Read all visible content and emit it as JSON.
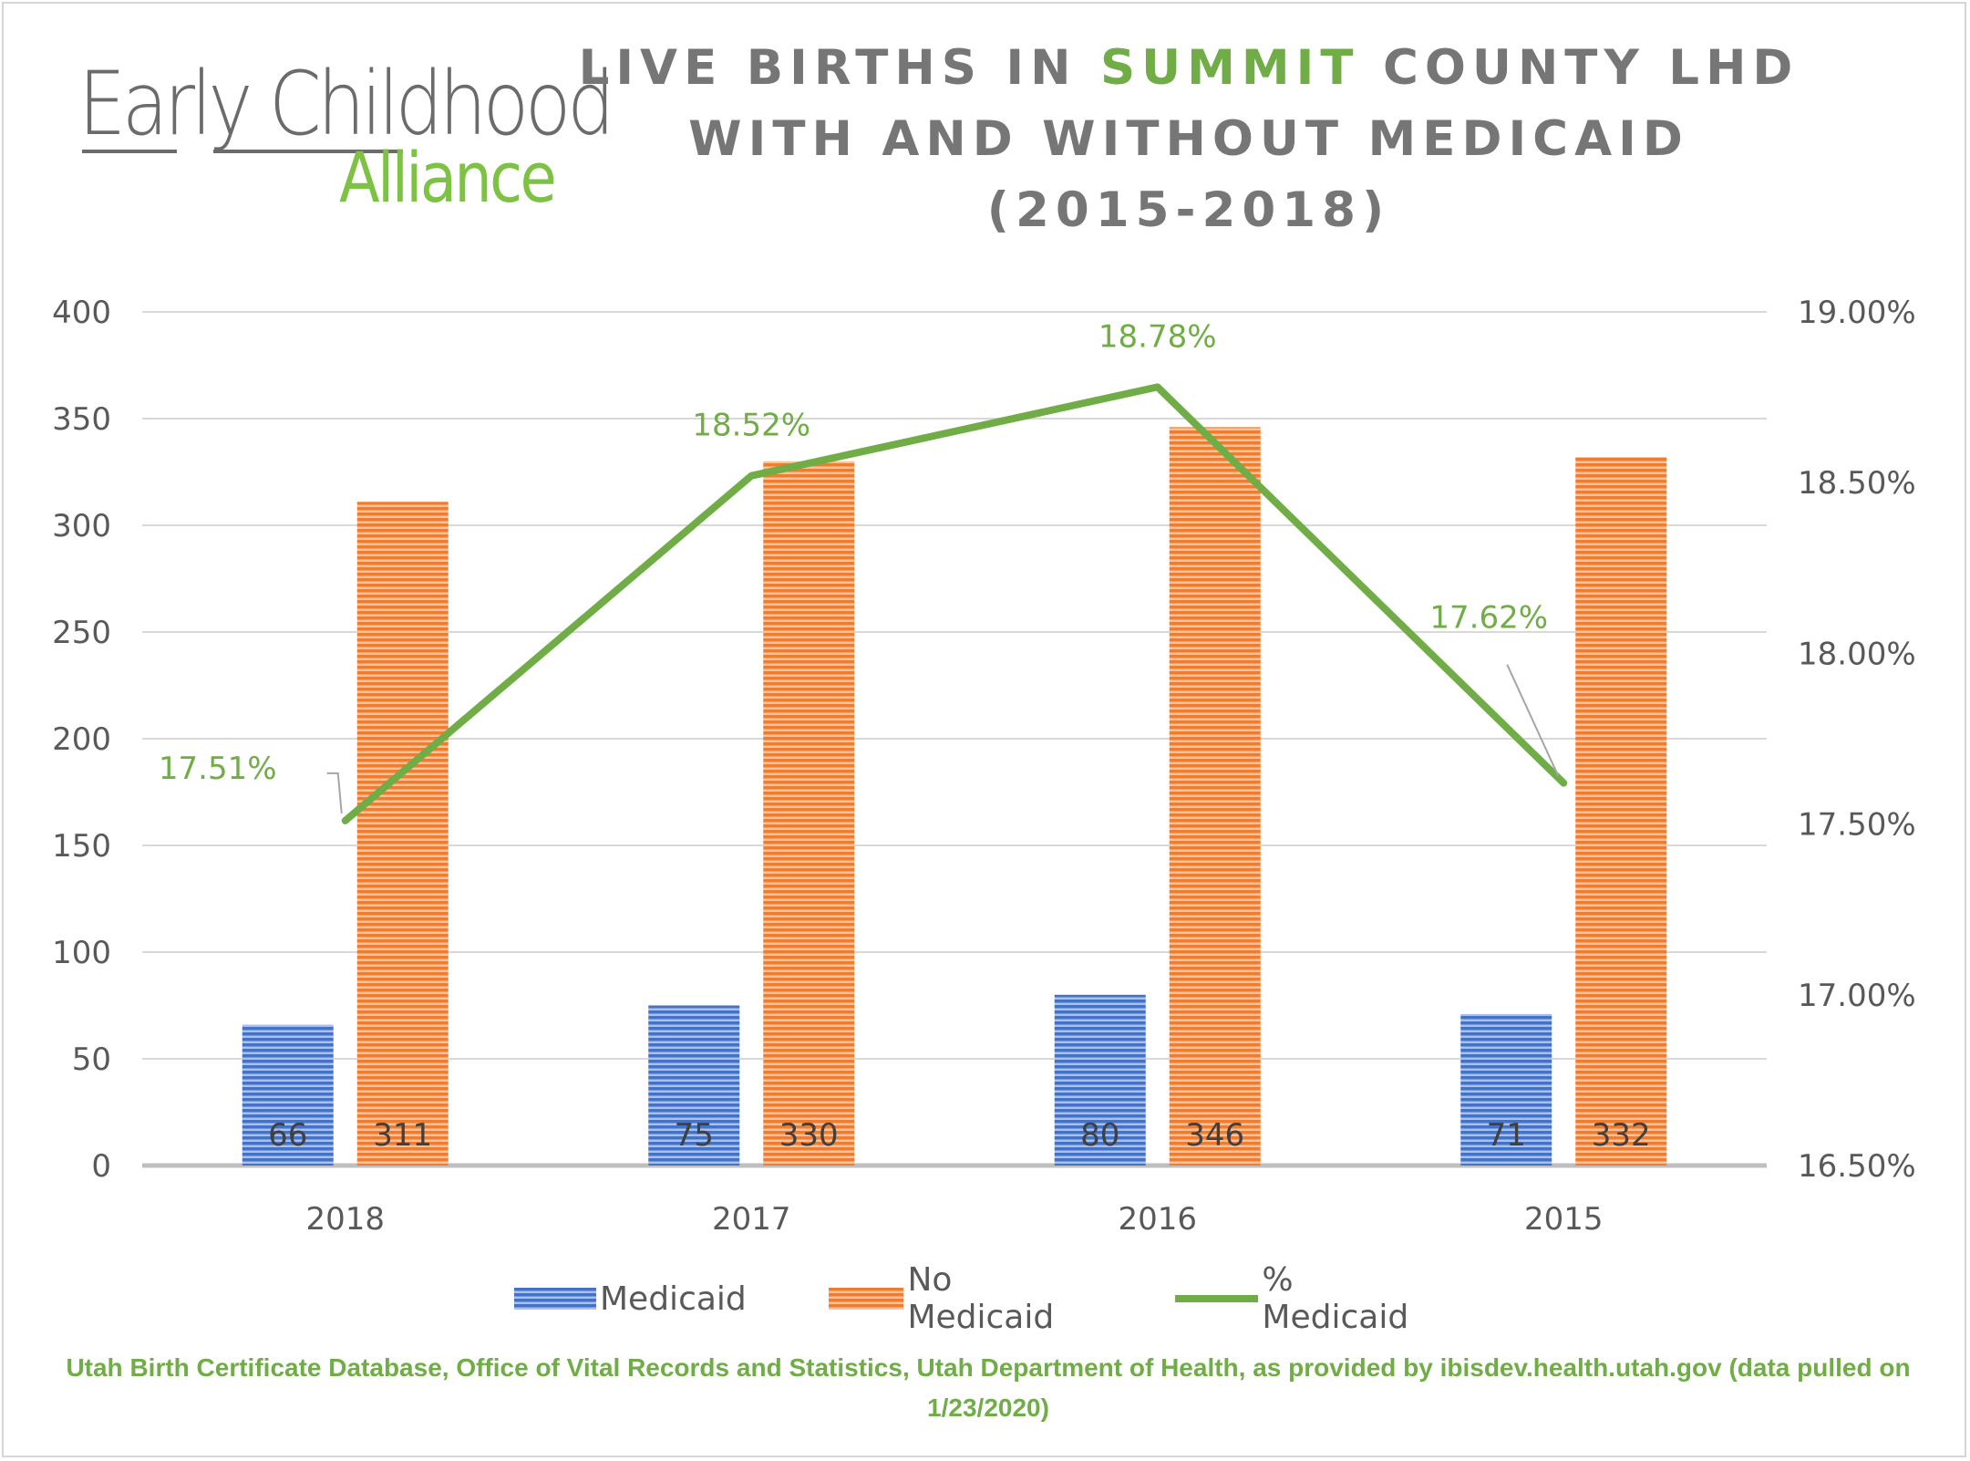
{
  "logo": {
    "line1": "Early Childhood",
    "line2": "Alliance"
  },
  "title": {
    "part1": "LIVE BIRTHS IN ",
    "highlight": "SUMMIT",
    "part2": " COUNTY LHD",
    "line2": "WITH AND WITHOUT MEDICAID",
    "line3": "(2015-2018)"
  },
  "colors": {
    "medicaid": "#4472c4",
    "no_medicaid": "#ed7d31",
    "pct_line": "#70ad47",
    "title_text": "#767676",
    "axis_text": "#595959"
  },
  "chart_data": {
    "type": "bar",
    "categories": [
      "2018",
      "2017",
      "2016",
      "2015"
    ],
    "series": [
      {
        "name": "Medicaid",
        "type": "bar",
        "axis": "left",
        "values": [
          66,
          75,
          80,
          71
        ]
      },
      {
        "name": "No Medicaid",
        "type": "bar",
        "axis": "left",
        "values": [
          311,
          330,
          346,
          332
        ]
      },
      {
        "name": "% Medicaid",
        "type": "line",
        "axis": "right",
        "values": [
          17.51,
          18.52,
          18.78,
          17.62
        ]
      }
    ],
    "bar_labels": [
      [
        "66",
        "75",
        "80",
        "71"
      ],
      [
        "311",
        "330",
        "346",
        "332"
      ]
    ],
    "line_labels": [
      "17.51%",
      "18.52%",
      "18.78%",
      "17.62%"
    ],
    "y_left": {
      "min": 0,
      "max": 400,
      "ticks": [
        "0",
        "50",
        "100",
        "150",
        "200",
        "250",
        "300",
        "350",
        "400"
      ]
    },
    "y_right": {
      "min": 16.5,
      "max": 19.0,
      "ticks": [
        "16.50%",
        "17.00%",
        "17.50%",
        "18.00%",
        "18.50%",
        "19.00%"
      ]
    },
    "grid": true,
    "legend_position": "bottom"
  },
  "legend": {
    "medicaid": "Medicaid",
    "no_medicaid": "No Medicaid",
    "pct_medicaid": "% Medicaid"
  },
  "source": "Utah Birth Certificate Database, Office of Vital Records and Statistics, Utah Department of Health, as provided by ibisdev.health.utah.gov (data pulled on 1/23/2020)"
}
